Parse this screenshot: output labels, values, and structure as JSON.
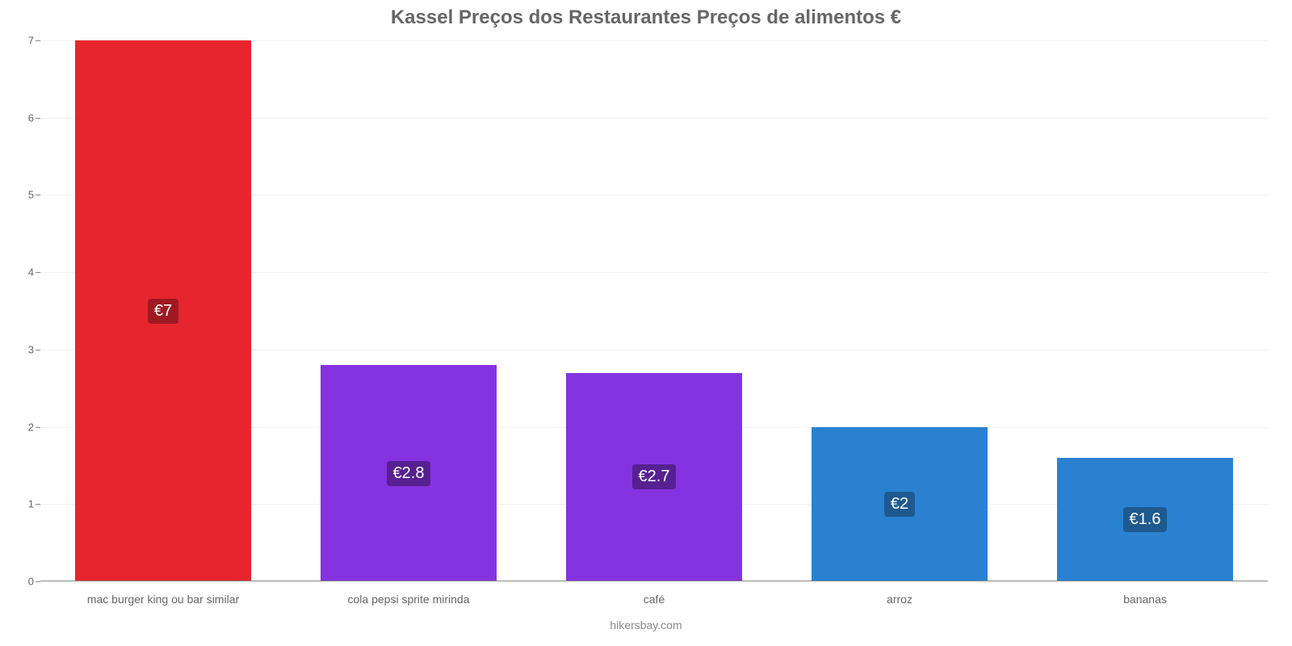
{
  "chart": {
    "type": "bar",
    "title": "Kassel Preços dos Restaurantes Preços de alimentos €",
    "title_color": "#666666",
    "title_fontsize": 24,
    "background_color": "#ffffff",
    "grid_color": "#f2f2f2",
    "axis_color": "#888888",
    "label_color": "#666666",
    "label_fontsize": 14,
    "ylim_min": 0,
    "ylim_max": 7,
    "ytick_step": 1,
    "yticks": [
      0,
      1,
      2,
      3,
      4,
      5,
      6,
      7
    ],
    "bar_width_pct": 72,
    "categories": [
      "mac burger king ou bar similar",
      "cola pepsi sprite mirinda",
      "café",
      "arroz",
      "bananas"
    ],
    "values": [
      7,
      2.8,
      2.7,
      2,
      1.6
    ],
    "value_labels": [
      "€7",
      "€2.8",
      "€2.7",
      "€2",
      "€1.6"
    ],
    "bar_colors": [
      "#e6252e",
      "#8532e0",
      "#8532e0",
      "#2a81d1",
      "#2a81d1"
    ],
    "value_bg_colors": [
      "#9e1a20",
      "#562091",
      "#562091",
      "#1e5a8f",
      "#1e5a8f"
    ],
    "value_label_fontsize": 20,
    "footer": "hikersbay.com",
    "footer_color": "#888888"
  }
}
